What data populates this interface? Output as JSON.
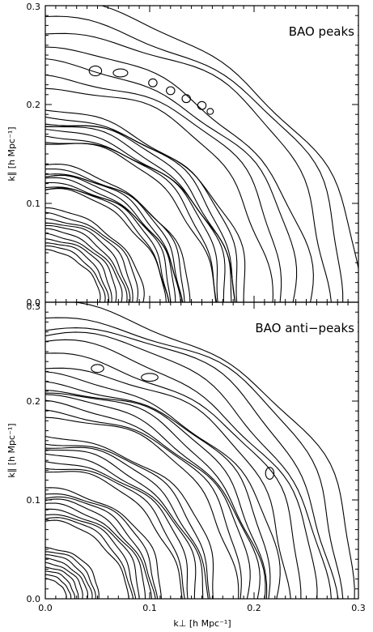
{
  "figure": {
    "panels": [
      {
        "title": "BAO peaks"
      },
      {
        "title": "BAO anti−peaks"
      }
    ],
    "xlabel": "k⊥ [h Mpc⁻¹]",
    "ylabel": "k∥ [h Mpc⁻¹]"
  },
  "chart_data": [
    {
      "type": "contour",
      "title": "BAO peaks",
      "xlabel": "k⊥ [h Mpc⁻¹]",
      "ylabel": "k∥ [h Mpc⁻¹]",
      "xlim": [
        0.0,
        0.3
      ],
      "ylim": [
        0.0,
        0.3
      ],
      "x_ticks": [
        "0.0",
        "0.1",
        "0.2",
        "0.3"
      ],
      "y_ticks": [
        "0.0",
        "0.1",
        "0.2",
        "0.3"
      ],
      "show_x_tick_labels": false,
      "color": "#000000",
      "ring_groups": [
        {
          "k_inner": 0.052,
          "k_outer": 0.093,
          "count": 11
        },
        {
          "k_inner": 0.113,
          "k_outer": 0.137,
          "count": 10
        },
        {
          "k_inner": 0.162,
          "k_outer": 0.192,
          "count": 9
        },
        {
          "k_inner": 0.218,
          "k_outer": 0.252,
          "count": 4
        },
        {
          "k_inner": 0.275,
          "k_outer": 0.298,
          "count": 3
        }
      ],
      "closed_contours": [
        {
          "kx": 0.048,
          "ky": 0.234,
          "rx": 0.006,
          "ry": 0.005
        },
        {
          "kx": 0.072,
          "ky": 0.232,
          "rx": 0.007,
          "ry": 0.004
        },
        {
          "kx": 0.103,
          "ky": 0.222,
          "rx": 0.004,
          "ry": 0.004
        },
        {
          "kx": 0.12,
          "ky": 0.214,
          "rx": 0.004,
          "ry": 0.004
        },
        {
          "kx": 0.135,
          "ky": 0.206,
          "rx": 0.004,
          "ry": 0.004
        },
        {
          "kx": 0.15,
          "ky": 0.199,
          "rx": 0.004,
          "ry": 0.004
        },
        {
          "kx": 0.158,
          "ky": 0.193,
          "rx": 0.003,
          "ry": 0.003
        }
      ]
    },
    {
      "type": "contour",
      "title": "BAO anti−peaks",
      "xlabel": "k⊥ [h Mpc⁻¹]",
      "ylabel": "k∥ [h Mpc⁻¹]",
      "xlim": [
        0.0,
        0.3
      ],
      "ylim": [
        0.0,
        0.3
      ],
      "x_ticks": [
        "0.0",
        "0.1",
        "0.2",
        "0.3"
      ],
      "y_ticks": [
        "0.0",
        "0.1",
        "0.2",
        "0.3"
      ],
      "show_x_tick_labels": true,
      "color": "#000000",
      "ring_groups": [
        {
          "k_inner": 0.02,
          "k_outer": 0.052,
          "count": 9
        },
        {
          "k_inner": 0.078,
          "k_outer": 0.112,
          "count": 9
        },
        {
          "k_inner": 0.13,
          "k_outer": 0.165,
          "count": 8
        },
        {
          "k_inner": 0.185,
          "k_outer": 0.224,
          "count": 8
        },
        {
          "k_inner": 0.236,
          "k_outer": 0.297,
          "count": 7
        }
      ],
      "closed_contours": [
        {
          "kx": 0.05,
          "ky": 0.233,
          "rx": 0.006,
          "ry": 0.004
        },
        {
          "kx": 0.1,
          "ky": 0.224,
          "rx": 0.008,
          "ry": 0.004
        },
        {
          "kx": 0.215,
          "ky": 0.127,
          "rx": 0.004,
          "ry": 0.006
        }
      ]
    }
  ]
}
